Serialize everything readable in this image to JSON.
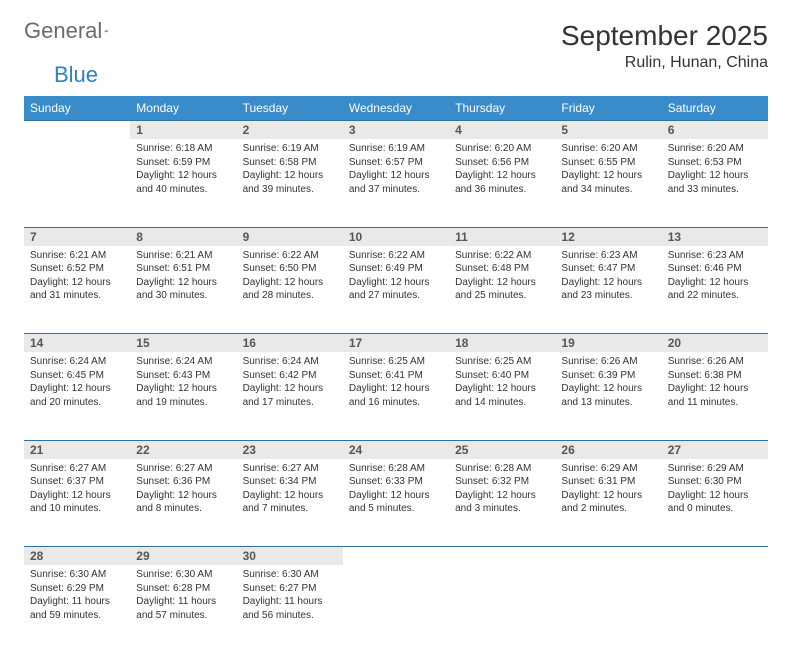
{
  "logo": {
    "text1": "General",
    "text2": "Blue"
  },
  "title": "September 2025",
  "location": "Rulin, Hunan, China",
  "header_color": "#3a8bc9",
  "daynum_bg": "#e9e9e9",
  "rule_color": "#2f6fa8",
  "weekdays": [
    "Sunday",
    "Monday",
    "Tuesday",
    "Wednesday",
    "Thursday",
    "Friday",
    "Saturday"
  ],
  "weeks": [
    [
      null,
      {
        "n": "1",
        "sr": "6:18 AM",
        "ss": "6:59 PM",
        "dl": "12 hours and 40 minutes."
      },
      {
        "n": "2",
        "sr": "6:19 AM",
        "ss": "6:58 PM",
        "dl": "12 hours and 39 minutes."
      },
      {
        "n": "3",
        "sr": "6:19 AM",
        "ss": "6:57 PM",
        "dl": "12 hours and 37 minutes."
      },
      {
        "n": "4",
        "sr": "6:20 AM",
        "ss": "6:56 PM",
        "dl": "12 hours and 36 minutes."
      },
      {
        "n": "5",
        "sr": "6:20 AM",
        "ss": "6:55 PM",
        "dl": "12 hours and 34 minutes."
      },
      {
        "n": "6",
        "sr": "6:20 AM",
        "ss": "6:53 PM",
        "dl": "12 hours and 33 minutes."
      }
    ],
    [
      {
        "n": "7",
        "sr": "6:21 AM",
        "ss": "6:52 PM",
        "dl": "12 hours and 31 minutes."
      },
      {
        "n": "8",
        "sr": "6:21 AM",
        "ss": "6:51 PM",
        "dl": "12 hours and 30 minutes."
      },
      {
        "n": "9",
        "sr": "6:22 AM",
        "ss": "6:50 PM",
        "dl": "12 hours and 28 minutes."
      },
      {
        "n": "10",
        "sr": "6:22 AM",
        "ss": "6:49 PM",
        "dl": "12 hours and 27 minutes."
      },
      {
        "n": "11",
        "sr": "6:22 AM",
        "ss": "6:48 PM",
        "dl": "12 hours and 25 minutes."
      },
      {
        "n": "12",
        "sr": "6:23 AM",
        "ss": "6:47 PM",
        "dl": "12 hours and 23 minutes."
      },
      {
        "n": "13",
        "sr": "6:23 AM",
        "ss": "6:46 PM",
        "dl": "12 hours and 22 minutes."
      }
    ],
    [
      {
        "n": "14",
        "sr": "6:24 AM",
        "ss": "6:45 PM",
        "dl": "12 hours and 20 minutes."
      },
      {
        "n": "15",
        "sr": "6:24 AM",
        "ss": "6:43 PM",
        "dl": "12 hours and 19 minutes."
      },
      {
        "n": "16",
        "sr": "6:24 AM",
        "ss": "6:42 PM",
        "dl": "12 hours and 17 minutes."
      },
      {
        "n": "17",
        "sr": "6:25 AM",
        "ss": "6:41 PM",
        "dl": "12 hours and 16 minutes."
      },
      {
        "n": "18",
        "sr": "6:25 AM",
        "ss": "6:40 PM",
        "dl": "12 hours and 14 minutes."
      },
      {
        "n": "19",
        "sr": "6:26 AM",
        "ss": "6:39 PM",
        "dl": "12 hours and 13 minutes."
      },
      {
        "n": "20",
        "sr": "6:26 AM",
        "ss": "6:38 PM",
        "dl": "12 hours and 11 minutes."
      }
    ],
    [
      {
        "n": "21",
        "sr": "6:27 AM",
        "ss": "6:37 PM",
        "dl": "12 hours and 10 minutes."
      },
      {
        "n": "22",
        "sr": "6:27 AM",
        "ss": "6:36 PM",
        "dl": "12 hours and 8 minutes."
      },
      {
        "n": "23",
        "sr": "6:27 AM",
        "ss": "6:34 PM",
        "dl": "12 hours and 7 minutes."
      },
      {
        "n": "24",
        "sr": "6:28 AM",
        "ss": "6:33 PM",
        "dl": "12 hours and 5 minutes."
      },
      {
        "n": "25",
        "sr": "6:28 AM",
        "ss": "6:32 PM",
        "dl": "12 hours and 3 minutes."
      },
      {
        "n": "26",
        "sr": "6:29 AM",
        "ss": "6:31 PM",
        "dl": "12 hours and 2 minutes."
      },
      {
        "n": "27",
        "sr": "6:29 AM",
        "ss": "6:30 PM",
        "dl": "12 hours and 0 minutes."
      }
    ],
    [
      {
        "n": "28",
        "sr": "6:30 AM",
        "ss": "6:29 PM",
        "dl": "11 hours and 59 minutes."
      },
      {
        "n": "29",
        "sr": "6:30 AM",
        "ss": "6:28 PM",
        "dl": "11 hours and 57 minutes."
      },
      {
        "n": "30",
        "sr": "6:30 AM",
        "ss": "6:27 PM",
        "dl": "11 hours and 56 minutes."
      },
      null,
      null,
      null,
      null
    ]
  ],
  "labels": {
    "sunrise": "Sunrise:",
    "sunset": "Sunset:",
    "daylight": "Daylight:"
  }
}
